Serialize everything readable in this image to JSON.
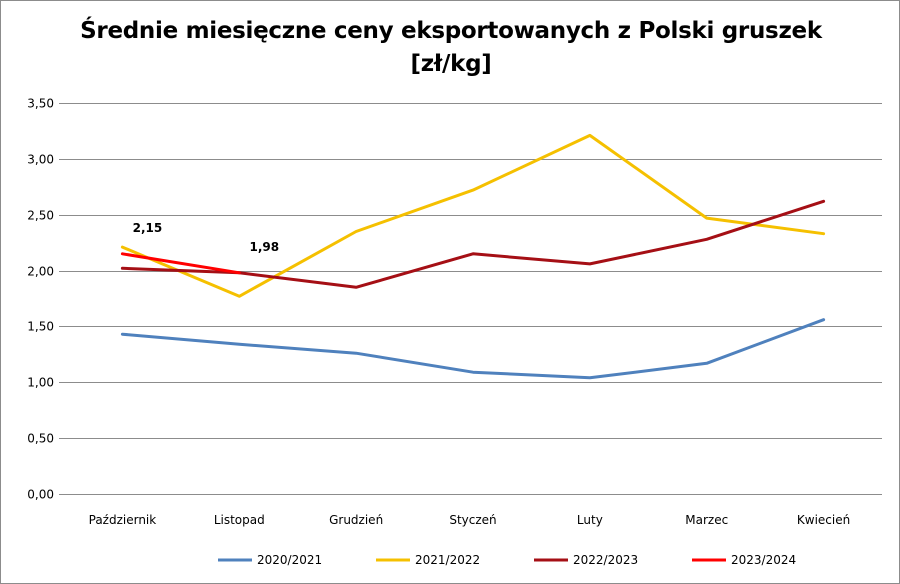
{
  "chart_data": {
    "type": "line",
    "title_line1": "Średnie miesięczne ceny eksportowanych z Polski gruszek",
    "title_line2": "[zł/kg]",
    "xlabel": "",
    "ylabel": "",
    "ylim": [
      0,
      3.5
    ],
    "y_ticks": [
      0,
      0.5,
      1.0,
      1.5,
      2.0,
      2.5,
      3.0,
      3.5
    ],
    "y_tick_labels": [
      "0,00",
      "0,50",
      "1,00",
      "1,50",
      "2,00",
      "2,50",
      "3,00",
      "3,50"
    ],
    "grid": "horizontal",
    "legend_position": "bottom",
    "categories": [
      "Październik",
      "Listopad",
      "Grudzień",
      "Styczeń",
      "Luty",
      "Marzec",
      "Kwiecień"
    ],
    "series": [
      {
        "name": "2020/2021",
        "color": "#4f81bd",
        "values": [
          1.43,
          1.34,
          1.26,
          1.09,
          1.04,
          1.17,
          1.56
        ]
      },
      {
        "name": "2021/2022",
        "color": "#f5c000",
        "values": [
          2.21,
          1.77,
          2.35,
          2.72,
          3.21,
          2.47,
          2.33
        ]
      },
      {
        "name": "2022/2023",
        "color": "#a50f15",
        "values": [
          2.02,
          1.98,
          1.85,
          2.15,
          2.06,
          2.28,
          2.62
        ]
      },
      {
        "name": "2023/2024",
        "color": "#ff0000",
        "values": [
          2.15,
          1.98,
          null,
          null,
          null,
          null,
          null
        ],
        "data_labels": [
          "2,15",
          "1,98"
        ]
      }
    ]
  }
}
